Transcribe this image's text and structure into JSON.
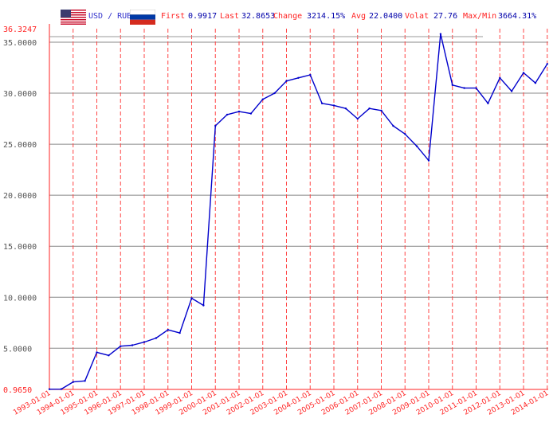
{
  "header": {
    "pair_label": "USD / RUB",
    "stats": [
      {
        "label": "First",
        "value": "0.9917"
      },
      {
        "label": "Last",
        "value": "32.8653"
      },
      {
        "label": "Change",
        "value": "3214.15%"
      },
      {
        "label": "Avg",
        "value": "22.0400"
      },
      {
        "label": "Volat",
        "value": "27.76"
      },
      {
        "label": "Max/Min",
        "value": "3664.31%"
      }
    ],
    "flag_left": "us-flag-icon",
    "flag_right": "ru-flag-icon"
  },
  "colors": {
    "line": "#0000cc",
    "grid_vertical": "#ff4444",
    "grid_horizontal": "#888888",
    "axis": "#ff2222",
    "label_red": "#ff2222",
    "label_blue": "#0000aa"
  },
  "chart_data": {
    "type": "line",
    "x_axis": "date",
    "ylim": [
      0.965,
      36.3247
    ],
    "y_ticks": [
      0.965,
      5.0,
      10.0,
      15.0,
      20.0,
      25.0,
      30.0,
      35.0,
      36.3247
    ],
    "y_tick_labels": [
      "0.9650",
      "5.0000",
      "10.0000",
      "15.0000",
      "20.0000",
      "25.0000",
      "30.0000",
      "35.0000",
      "36.3247"
    ],
    "x_tick_labels": [
      "1993-01-01",
      "1994-01-01",
      "1995-01-01",
      "1996-01-01",
      "1997-01-01",
      "1998-01-01",
      "1999-01-01",
      "2000-01-01",
      "2001-01-01",
      "2002-01-01",
      "2003-01-01",
      "2004-01-01",
      "2005-01-01",
      "2006-01-01",
      "2007-01-01",
      "2008-01-01",
      "2009-01-01",
      "2010-01-01",
      "2011-01-01",
      "2012-01-01",
      "2013-01-01",
      "2014-01-01"
    ],
    "series": [
      {
        "x": [
          "1993-01-01",
          "1993-07-01",
          "1994-01-01",
          "1994-07-01",
          "1995-01-01",
          "1995-07-01",
          "1996-01-01",
          "1996-07-01",
          "1997-01-01",
          "1997-07-01",
          "1998-01-01",
          "1998-07-01",
          "1999-01-01",
          "1999-07-01",
          "2000-01-01",
          "2000-07-01",
          "2001-01-01",
          "2001-07-01",
          "2002-01-01",
          "2002-07-01",
          "2003-01-01",
          "2003-07-01",
          "2004-01-01",
          "2004-07-01",
          "2005-01-01",
          "2005-07-01",
          "2006-01-01",
          "2006-07-01",
          "2007-01-01",
          "2007-07-01",
          "2008-01-01",
          "2008-07-01",
          "2009-01-01",
          "2009-07-01",
          "2010-01-01",
          "2010-07-01",
          "2011-01-01",
          "2011-07-01",
          "2012-01-01",
          "2012-07-01",
          "2013-01-01",
          "2013-07-01",
          "2014-01-01"
        ],
        "y": [
          0.99,
          1.0,
          1.7,
          1.8,
          4.6,
          4.3,
          5.2,
          5.3,
          5.6,
          6.0,
          6.8,
          6.5,
          9.9,
          9.2,
          26.8,
          27.9,
          28.2,
          28.0,
          29.4,
          30.0,
          31.2,
          31.5,
          31.8,
          29.0,
          28.8,
          28.5,
          27.5,
          28.5,
          28.3,
          26.8,
          26.0,
          24.8,
          23.4,
          35.8,
          30.8,
          30.5,
          30.5,
          29.0,
          31.5,
          30.2,
          32.0,
          31.0,
          32.87
        ]
      }
    ]
  }
}
